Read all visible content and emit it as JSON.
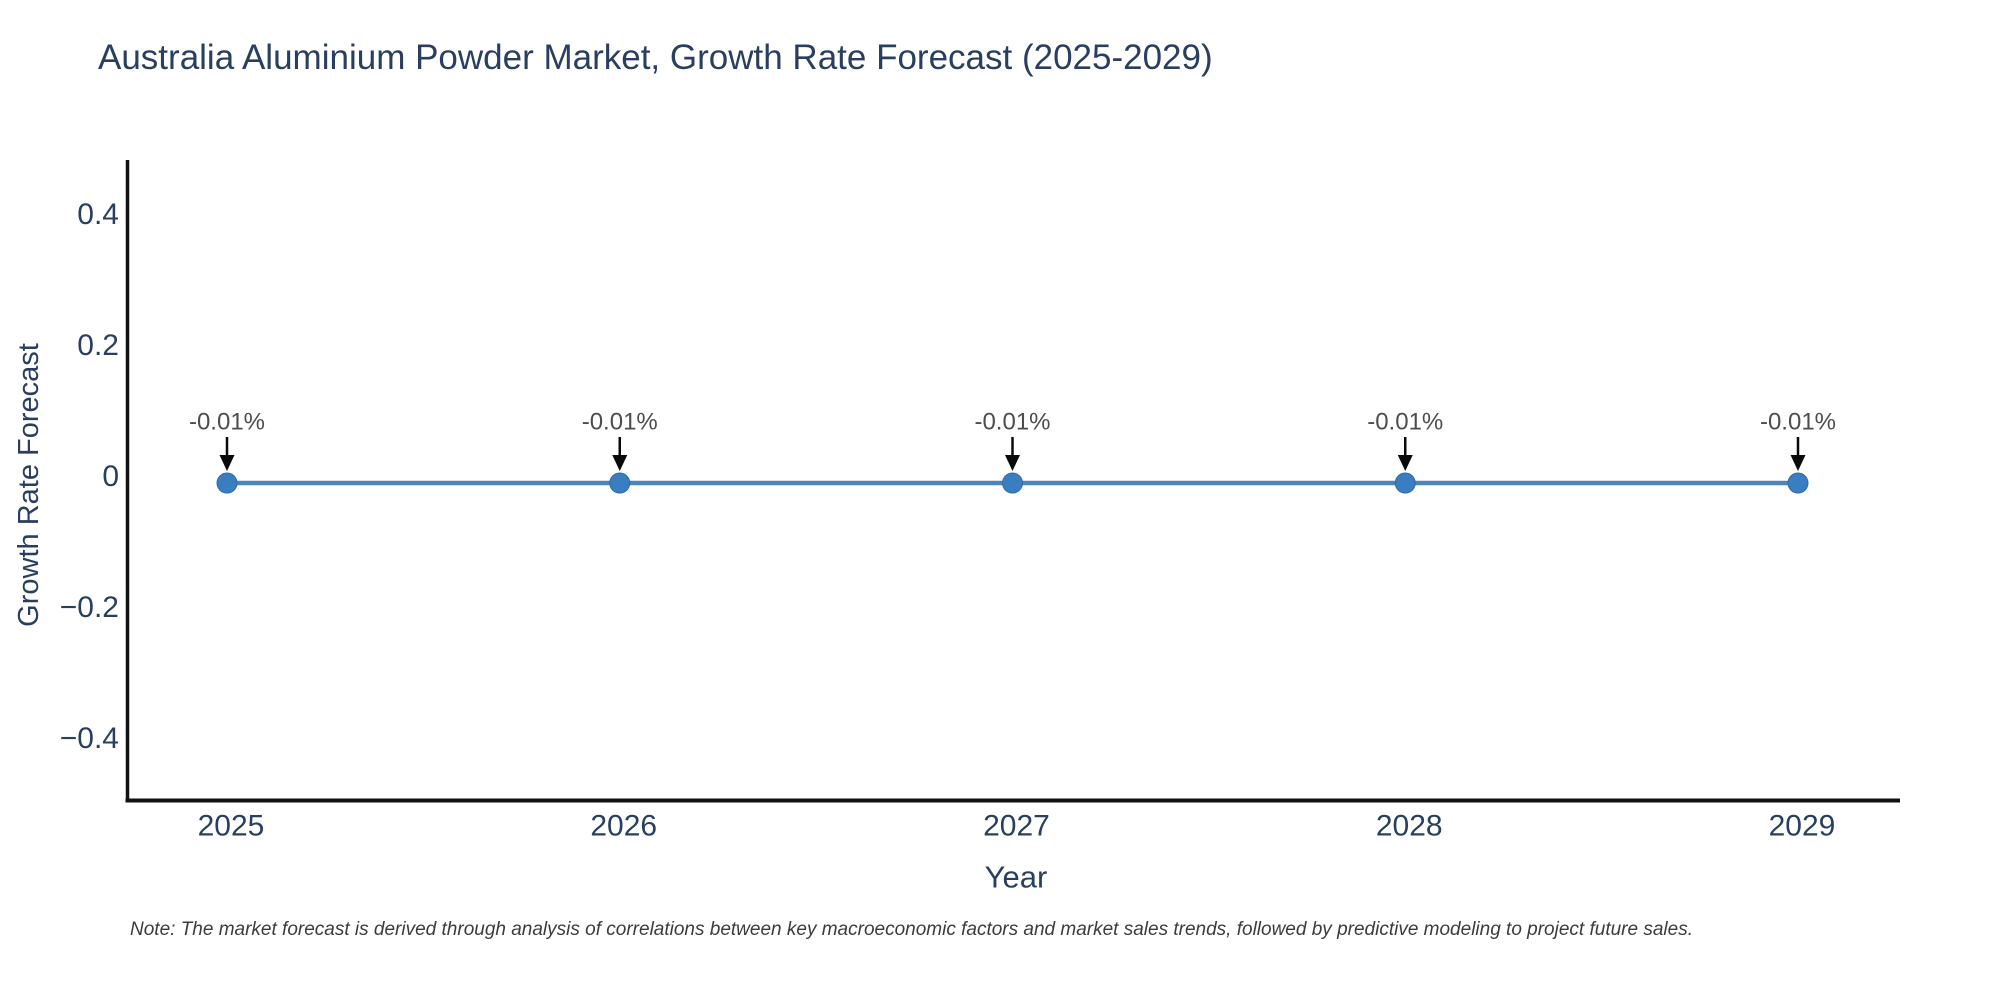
{
  "title": "Australia Aluminium Powder Market, Growth Rate Forecast (2025-2029)",
  "note": "Note: The market forecast is derived through analysis of correlations between key macroeconomic factors and market sales trends, followed by predictive modeling to project future sales.",
  "chart_data": {
    "type": "line",
    "x": [
      2025,
      2026,
      2027,
      2028,
      2029
    ],
    "values": [
      -0.01,
      -0.01,
      -0.01,
      -0.01,
      -0.01
    ],
    "point_labels": [
      "-0.01%",
      "-0.01%",
      "-0.01%",
      "-0.01%",
      "-0.01%"
    ],
    "xlabel": "Year",
    "ylabel": "Growth Rate Forecast",
    "ylim": [
      -0.5,
      0.5
    ],
    "yticks": [
      {
        "value": 0.4,
        "label": "0.4"
      },
      {
        "value": 0.2,
        "label": "0.2"
      },
      {
        "value": 0,
        "label": "0"
      },
      {
        "value": -0.2,
        "label": "−0.2"
      },
      {
        "value": -0.4,
        "label": "−0.4"
      }
    ],
    "grid": false,
    "legend": false,
    "colors": {
      "line": "#4d84b7",
      "marker": "#3b7dc1",
      "marker_edge": "#2e6ca4",
      "axis_line": "#111111",
      "axis_text": "#2a3f5f",
      "annotation_text": "#4d4d4d",
      "arrow": "#0a0a0a"
    }
  }
}
